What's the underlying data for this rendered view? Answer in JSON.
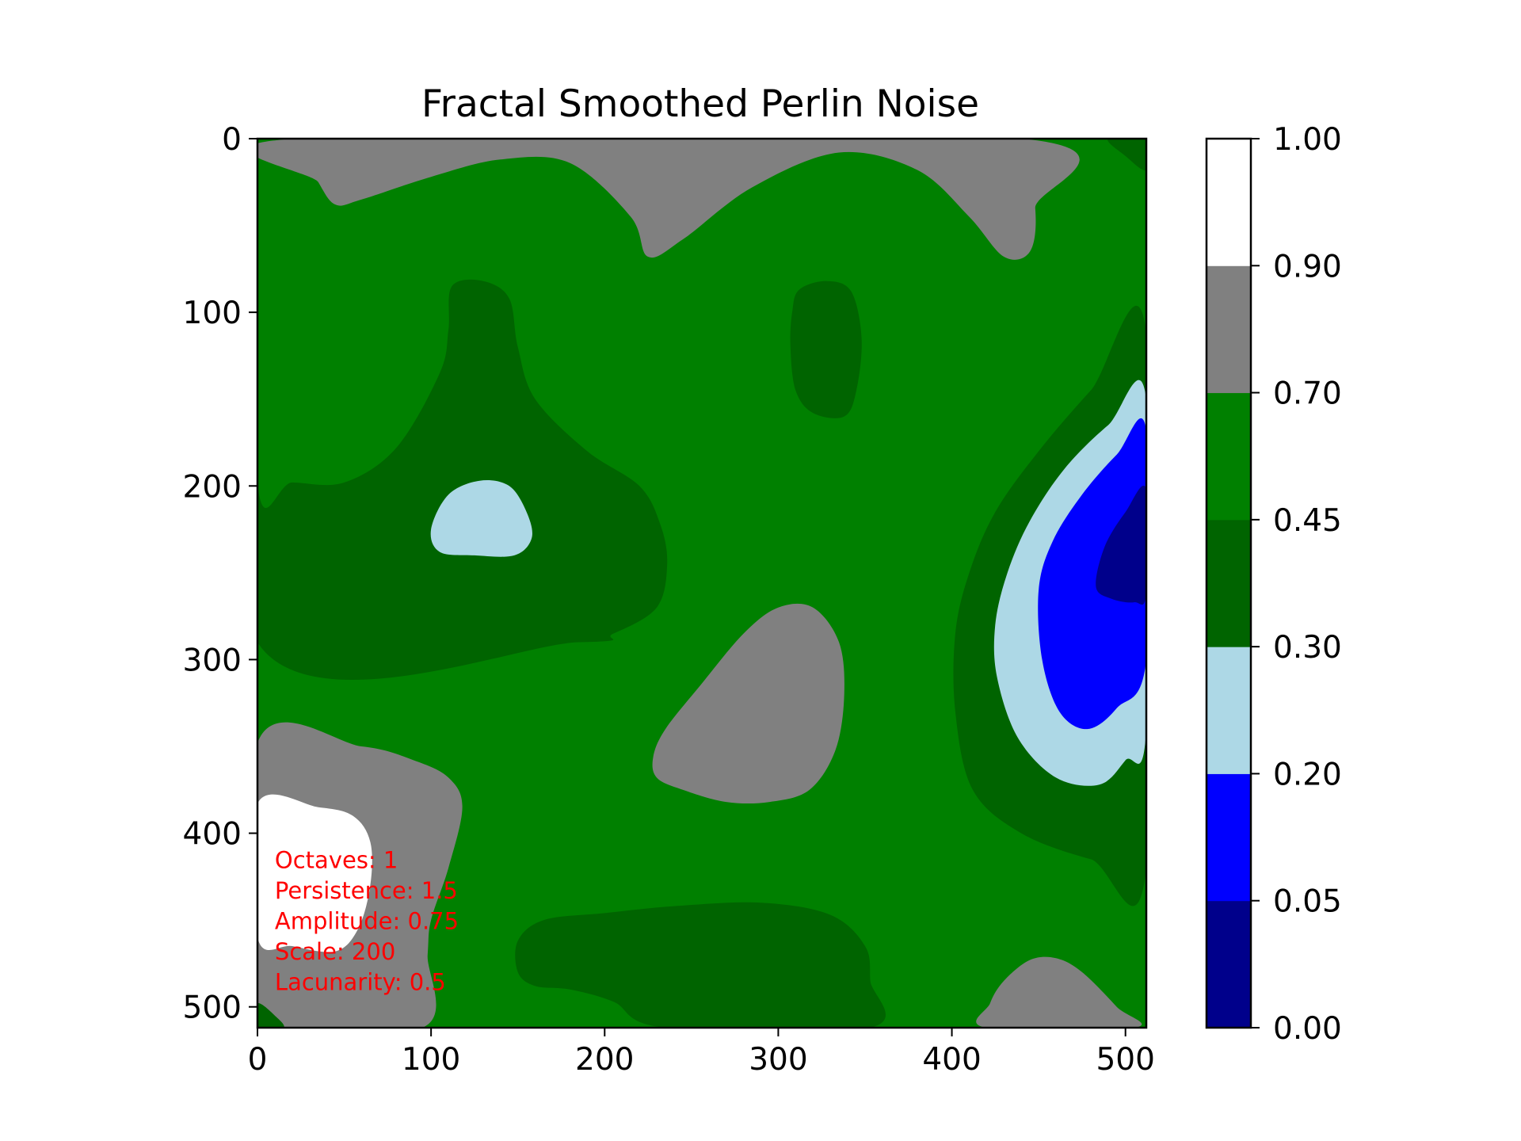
{
  "chart_data": {
    "type": "heatmap",
    "title": "Fractal Smoothed Perlin Noise",
    "xlabel": "",
    "ylabel": "",
    "xlim": [
      0,
      512
    ],
    "ylim": [
      512,
      0
    ],
    "x_ticks": [
      0,
      100,
      200,
      300,
      400,
      500
    ],
    "y_ticks": [
      0,
      100,
      200,
      300,
      400,
      500
    ],
    "x_tick_labels": [
      "0",
      "100",
      "200",
      "300",
      "400",
      "500"
    ],
    "y_tick_labels": [
      "0",
      "100",
      "200",
      "300",
      "400",
      "500"
    ],
    "colorbar": {
      "boundaries": [
        0.0,
        0.05,
        0.2,
        0.3,
        0.45,
        0.7,
        0.9,
        1.0
      ],
      "tick_labels": [
        "0.00",
        "0.05",
        "0.20",
        "0.30",
        "0.45",
        "0.70",
        "0.90",
        "1.00"
      ],
      "colors": [
        "#00008b",
        "#0000ff",
        "#add8e6",
        "#006400",
        "#008000",
        "#808080",
        "#ffffff"
      ]
    },
    "background_level_color": "#008000",
    "regions": [
      {
        "color": "#808080",
        "points": [
          [
            22,
            0
          ],
          [
            35,
            25
          ],
          [
            45,
            38
          ],
          [
            60,
            35
          ],
          [
            100,
            22
          ],
          [
            140,
            12
          ],
          [
            180,
            14
          ],
          [
            215,
            45
          ],
          [
            225,
            68
          ],
          [
            245,
            58
          ],
          [
            285,
            28
          ],
          [
            335,
            8
          ],
          [
            380,
            18
          ],
          [
            410,
            45
          ],
          [
            430,
            68
          ],
          [
            445,
            65
          ],
          [
            448,
            40
          ],
          [
            440,
            0
          ]
        ]
      },
      {
        "color": "#006400",
        "points": [
          [
            490,
            0
          ],
          [
            512,
            0
          ],
          [
            512,
            18
          ],
          [
            500,
            10
          ]
        ]
      },
      {
        "color": "#006400",
        "points": [
          [
            0,
            0
          ],
          [
            0,
            198
          ],
          [
            20,
            198
          ],
          [
            50,
            198
          ],
          [
            80,
            178
          ],
          [
            105,
            135
          ],
          [
            110,
            110
          ],
          [
            112,
            85
          ],
          [
            130,
            82
          ],
          [
            145,
            92
          ],
          [
            150,
            120
          ],
          [
            160,
            150
          ],
          [
            190,
            180
          ],
          [
            220,
            200
          ],
          [
            232,
            222
          ],
          [
            236,
            245
          ],
          [
            230,
            270
          ],
          [
            205,
            285
          ],
          [
            185,
            290
          ],
          [
            0,
            290
          ]
        ]
      },
      {
        "color": "#add8e6",
        "points": [
          [
            100,
            225
          ],
          [
            110,
            205
          ],
          [
            128,
            197
          ],
          [
            145,
            200
          ],
          [
            155,
            215
          ],
          [
            158,
            230
          ],
          [
            148,
            240
          ],
          [
            125,
            240
          ],
          [
            105,
            238
          ]
        ]
      },
      {
        "color": "#006400",
        "points": [
          [
            308,
            100
          ],
          [
            312,
            87
          ],
          [
            328,
            82
          ],
          [
            342,
            88
          ],
          [
            348,
            115
          ],
          [
            345,
            145
          ],
          [
            338,
            160
          ],
          [
            320,
            158
          ],
          [
            310,
            145
          ],
          [
            307,
            120
          ]
        ]
      },
      {
        "color": "#006400",
        "points": [
          [
            512,
            112
          ],
          [
            480,
            145
          ],
          [
            450,
            180
          ],
          [
            425,
            215
          ],
          [
            410,
            250
          ],
          [
            402,
            285
          ],
          [
            402,
            330
          ],
          [
            412,
            375
          ],
          [
            440,
            400
          ],
          [
            480,
            415
          ],
          [
            512,
            420
          ]
        ]
      },
      {
        "color": "#add8e6",
        "points": [
          [
            512,
            150
          ],
          [
            490,
            165
          ],
          [
            465,
            190
          ],
          [
            445,
            220
          ],
          [
            432,
            250
          ],
          [
            425,
            280
          ],
          [
            426,
            310
          ],
          [
            438,
            345
          ],
          [
            460,
            368
          ],
          [
            485,
            372
          ],
          [
            500,
            358
          ],
          [
            512,
            340
          ]
        ]
      },
      {
        "color": "#0000ff",
        "points": [
          [
            512,
            168
          ],
          [
            495,
            182
          ],
          [
            475,
            205
          ],
          [
            458,
            232
          ],
          [
            450,
            260
          ],
          [
            452,
            300
          ],
          [
            462,
            330
          ],
          [
            478,
            340
          ],
          [
            495,
            328
          ],
          [
            512,
            300
          ]
        ]
      },
      {
        "color": "#00008b",
        "points": [
          [
            512,
            202
          ],
          [
            500,
            215
          ],
          [
            488,
            235
          ],
          [
            483,
            258
          ],
          [
            492,
            265
          ],
          [
            505,
            267
          ],
          [
            512,
            262
          ]
        ]
      },
      {
        "color": "#808080",
        "points": [
          [
            228,
            356
          ],
          [
            235,
            340
          ],
          [
            255,
            315
          ],
          [
            280,
            285
          ],
          [
            300,
            270
          ],
          [
            320,
            270
          ],
          [
            335,
            290
          ],
          [
            338,
            320
          ],
          [
            333,
            352
          ],
          [
            318,
            375
          ],
          [
            295,
            382
          ],
          [
            270,
            382
          ],
          [
            245,
            375
          ],
          [
            230,
            368
          ]
        ]
      },
      {
        "color": "#808080",
        "points": [
          [
            0,
            348
          ],
          [
            60,
            350
          ],
          [
            90,
            358
          ],
          [
            110,
            368
          ],
          [
            118,
            385
          ],
          [
            110,
            420
          ],
          [
            100,
            450
          ],
          [
            98,
            470
          ],
          [
            95,
            512
          ],
          [
            0,
            512
          ]
        ]
      },
      {
        "color": "#ffffff",
        "points": [
          [
            0,
            383
          ],
          [
            35,
            385
          ],
          [
            55,
            390
          ],
          [
            65,
            405
          ],
          [
            65,
            430
          ],
          [
            58,
            455
          ],
          [
            45,
            468
          ],
          [
            20,
            465
          ],
          [
            0,
            460
          ]
        ]
      },
      {
        "color": "#006400",
        "points": [
          [
            0,
            498
          ],
          [
            10,
            505
          ],
          [
            15,
            512
          ],
          [
            0,
            512
          ]
        ]
      },
      {
        "color": "#006400",
        "points": [
          [
            150,
            462
          ],
          [
            165,
            450
          ],
          [
            200,
            446
          ],
          [
            240,
            442
          ],
          [
            290,
            440
          ],
          [
            330,
            447
          ],
          [
            350,
            465
          ],
          [
            353,
            485
          ],
          [
            353,
            512
          ],
          [
            235,
            512
          ],
          [
            205,
            497
          ],
          [
            180,
            490
          ],
          [
            160,
            488
          ],
          [
            150,
            480
          ]
        ]
      },
      {
        "color": "#808080",
        "points": [
          [
            420,
            512
          ],
          [
            422,
            498
          ],
          [
            430,
            485
          ],
          [
            445,
            473
          ],
          [
            460,
            472
          ],
          [
            475,
            480
          ],
          [
            495,
            500
          ],
          [
            505,
            512
          ]
        ]
      }
    ],
    "annotations": [
      "Octaves: 1",
      "Persistence: 1.5",
      "Amplitude: 0.75",
      "Scale: 200",
      "Lacunarity: 0.5"
    ],
    "annotation_color": "#ff0000"
  }
}
